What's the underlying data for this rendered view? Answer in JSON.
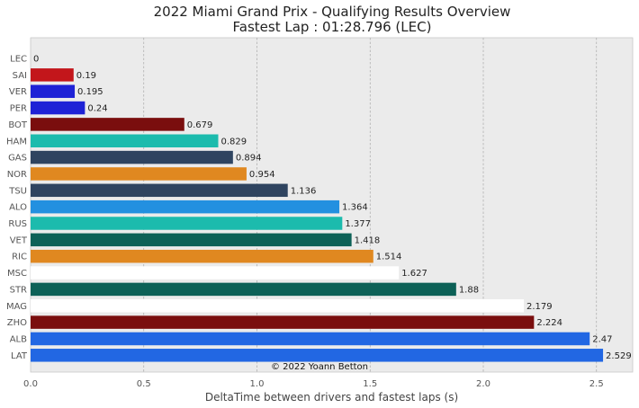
{
  "chart_data": {
    "type": "bar",
    "orientation": "horizontal",
    "title": "2022 Miami Grand Prix - Qualifying Results Overview",
    "subtitle": "Fastest Lap : 01:28.796 (LEC)",
    "xlabel": "DeltaTime between drivers and fastest laps (s)",
    "ylabel": "",
    "xlim": [
      0,
      2.66
    ],
    "xticks": [
      "0.0",
      "0.5",
      "1.0",
      "1.5",
      "2.0",
      "2.5"
    ],
    "grid": true,
    "annotation": "© 2022 Yoann Betton",
    "categories": [
      "LEC",
      "SAI",
      "VER",
      "PER",
      "BOT",
      "HAM",
      "GAS",
      "NOR",
      "TSU",
      "ALO",
      "RUS",
      "VET",
      "RIC",
      "MSC",
      "STR",
      "MAG",
      "ZHO",
      "ALB",
      "LAT"
    ],
    "values": [
      0,
      0.19,
      0.195,
      0.24,
      0.679,
      0.829,
      0.894,
      0.954,
      1.136,
      1.364,
      1.377,
      1.418,
      1.514,
      1.627,
      1.88,
      2.179,
      2.224,
      2.47,
      2.529
    ],
    "value_labels": [
      "0",
      "0.19",
      "0.195",
      "0.24",
      "0.679",
      "0.829",
      "0.894",
      "0.954",
      "1.136",
      "1.364",
      "1.377",
      "1.418",
      "1.514",
      "1.627",
      "1.88",
      "2.179",
      "2.224",
      "2.47",
      "2.529"
    ],
    "colors": [
      "#dc0000",
      "#c3161b",
      "#1e22d6",
      "#1e22d6",
      "#7a0e0e",
      "#1cbbad",
      "#2f4460",
      "#e08820",
      "#2f4460",
      "#2390e0",
      "#1cbbad",
      "#0d6157",
      "#e08820",
      "#ffffff",
      "#0d6157",
      "#ffffff",
      "#7a0e0e",
      "#2267e3",
      "#2267e3"
    ],
    "background": "#ebebeb"
  }
}
